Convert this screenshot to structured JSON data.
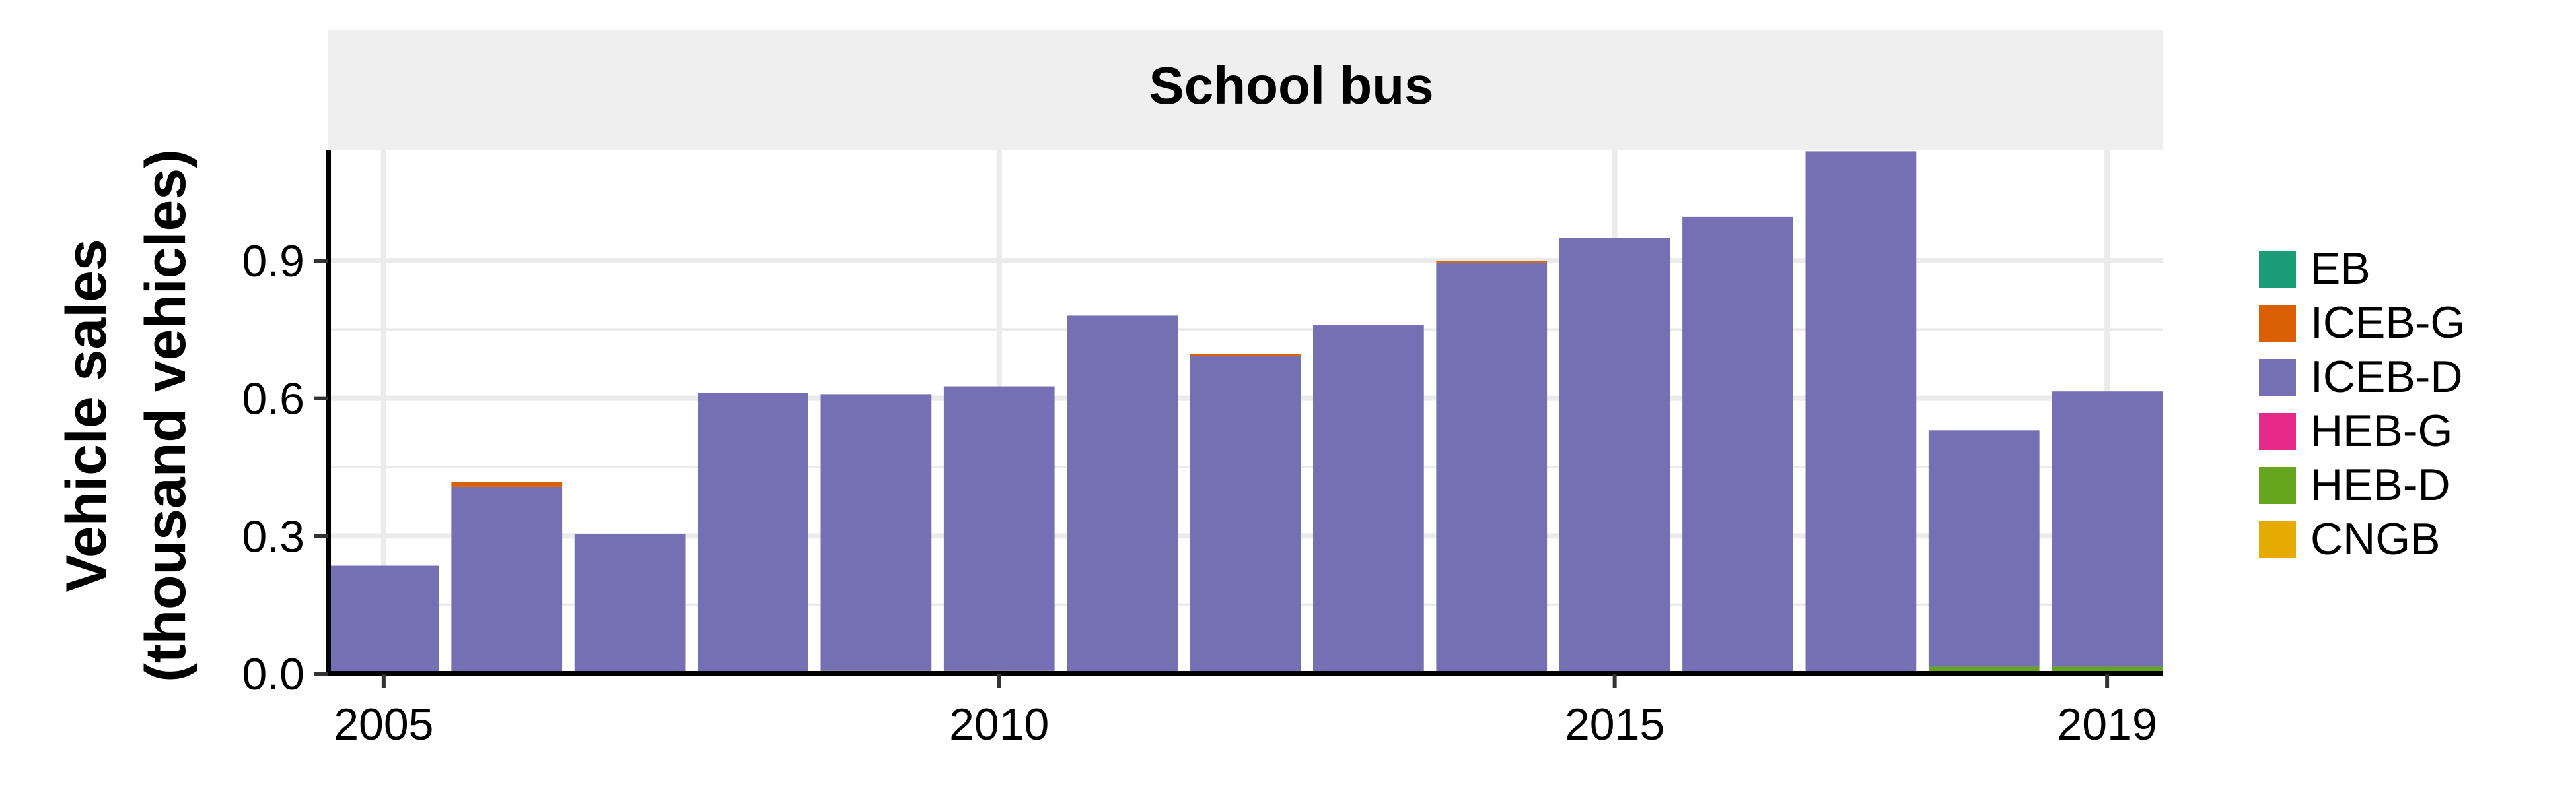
{
  "chart_data": {
    "type": "bar",
    "stacked": true,
    "panel_title": "School bus",
    "ylabel_line1": "Vehicle sales",
    "ylabel_line2": "(thousand vehicles)",
    "xlabel": "",
    "x": [
      2005,
      2006,
      2007,
      2008,
      2009,
      2010,
      2011,
      2012,
      2013,
      2014,
      2015,
      2016,
      2017,
      2018,
      2019
    ],
    "x_ticks": [
      2005,
      2010,
      2015,
      2019
    ],
    "y_ticks": [
      "0.0",
      "0.3",
      "0.6",
      "0.9"
    ],
    "y_tick_values": [
      0,
      0.3,
      0.6,
      0.9
    ],
    "ylim": [
      0,
      1.14
    ],
    "xlim": [
      2004.55,
      2019.45
    ],
    "grid": true,
    "legend_position": "right",
    "series": [
      {
        "name": "EB",
        "color": "#1b9e77",
        "values": [
          0,
          0,
          0,
          0,
          0,
          0,
          0,
          0,
          0,
          0,
          0,
          0,
          0,
          0,
          0
        ]
      },
      {
        "name": "ICEB-G",
        "color": "#d95f02",
        "values": [
          0,
          0.01,
          0,
          0,
          0,
          0,
          0,
          0.003,
          0,
          0.003,
          0,
          0,
          0,
          0,
          0
        ]
      },
      {
        "name": "ICEB-D",
        "color": "#7570b3",
        "values": [
          0.235,
          0.402,
          0.304,
          0.612,
          0.603,
          0.62,
          0.78,
          0.693,
          0.76,
          0.896,
          0.95,
          0.995,
          1.138,
          0.515,
          0.6
        ]
      },
      {
        "name": "HEB-G",
        "color": "#e7298a",
        "values": [
          0,
          0,
          0,
          0,
          0,
          0,
          0,
          0,
          0,
          0,
          0,
          0,
          0,
          0,
          0
        ]
      },
      {
        "name": "HEB-D",
        "color": "#66a61e",
        "values": [
          0,
          0,
          0,
          0,
          0,
          0,
          0,
          0,
          0,
          0,
          0,
          0,
          0,
          0.015,
          0.015
        ]
      },
      {
        "name": "CNGB",
        "color": "#e6ab02",
        "values": [
          0,
          0.005,
          0,
          0,
          0.006,
          0.006,
          0,
          0,
          0,
          0,
          0,
          0,
          0,
          0,
          0
        ]
      }
    ]
  }
}
